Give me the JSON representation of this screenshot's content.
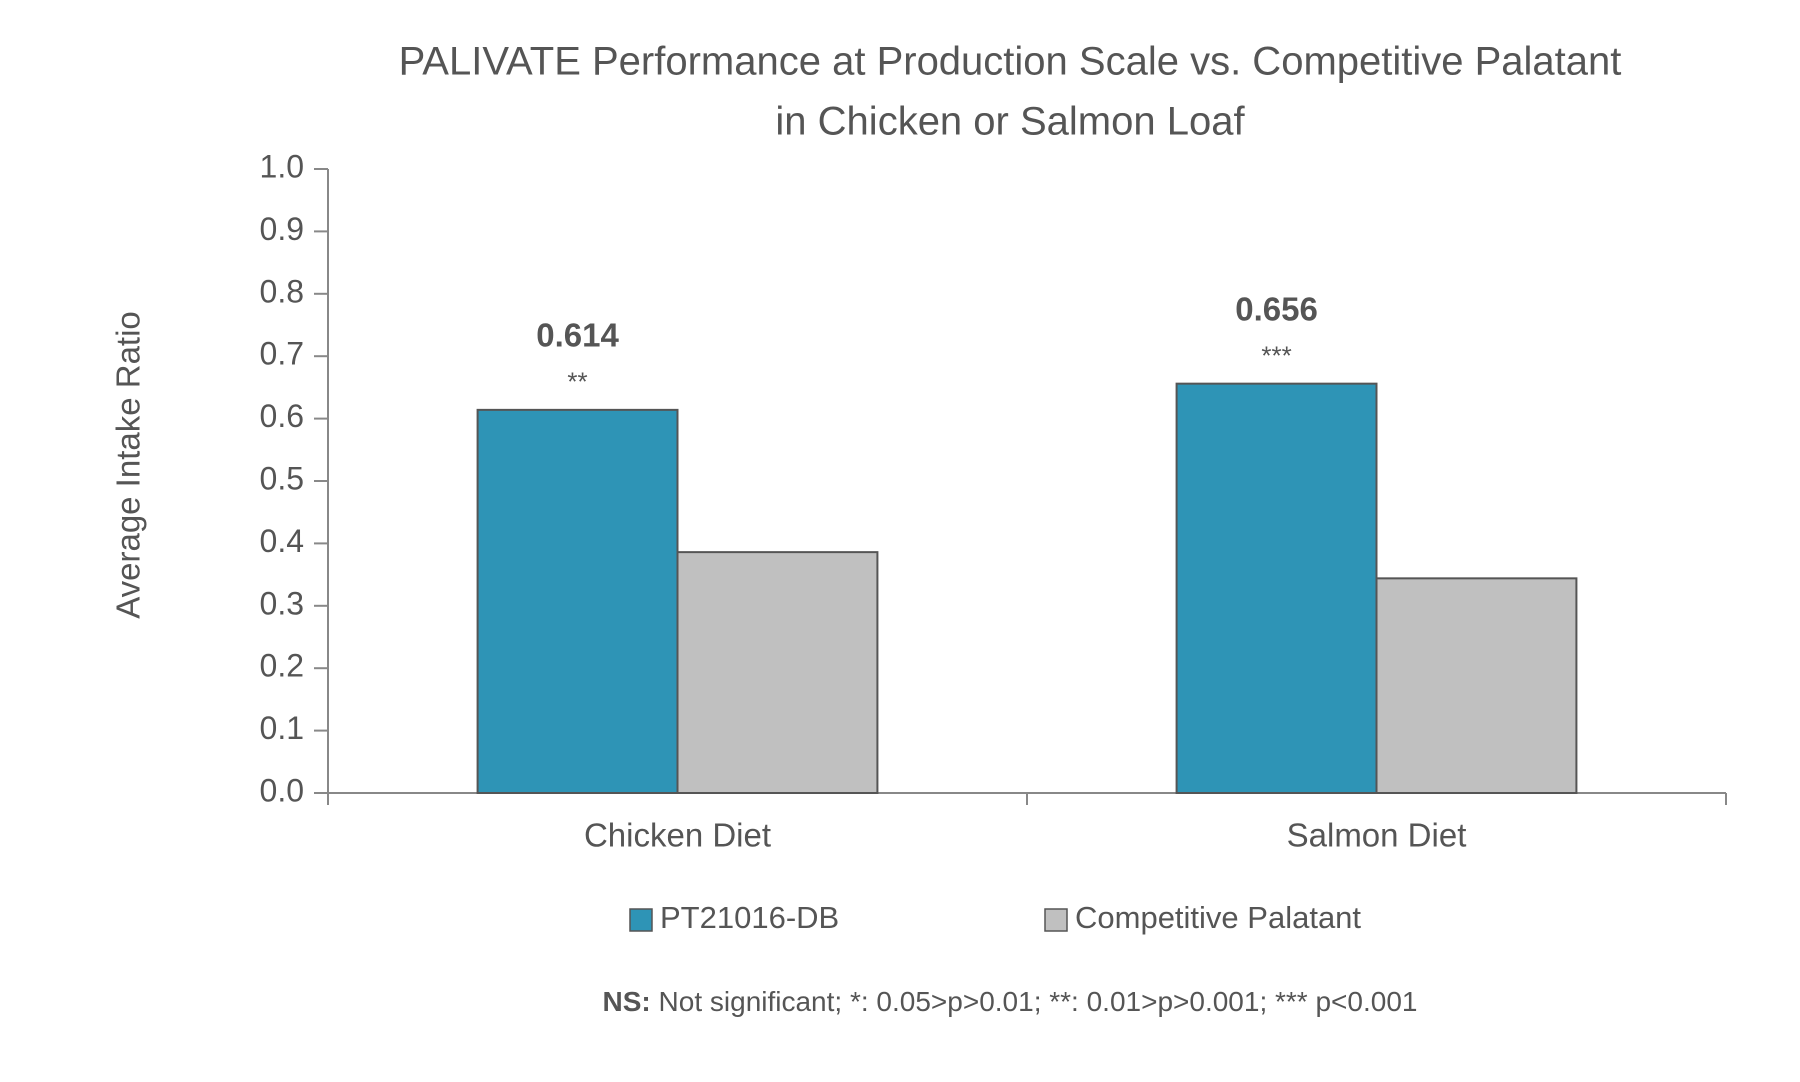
{
  "chart_data": {
    "type": "bar",
    "title": [
      "PALIVATE Performance at Production Scale vs. Competitive Palatant",
      "in Chicken or Salmon Loaf"
    ],
    "y_label": "Average Intake Ratio",
    "categories": [
      "Chicken Diet",
      "Salmon Diet"
    ],
    "series": [
      {
        "name": "PT21016-DB",
        "color": "#2e94b6",
        "values": [
          0.614,
          0.656
        ]
      },
      {
        "name": "Competitive Palatant",
        "color": "#c0c0c0",
        "values": [
          0.386,
          0.344
        ]
      }
    ],
    "annotations": [
      "**",
      "***"
    ],
    "ylim": [
      0,
      1
    ],
    "yticks": [
      {
        "value": 0,
        "label": "0.0"
      },
      0.1,
      0.2,
      0.3,
      0.4,
      0.5,
      0.6,
      0.7,
      0.8,
      0.9,
      {
        "value": 1,
        "label": "1.0"
      }
    ],
    "grid": false,
    "footnote_key": "NS:",
    "footnote": " Not significant; *: 0.05>p>0.01; **: 0.01>p>0.001; *** p<0.001"
  }
}
